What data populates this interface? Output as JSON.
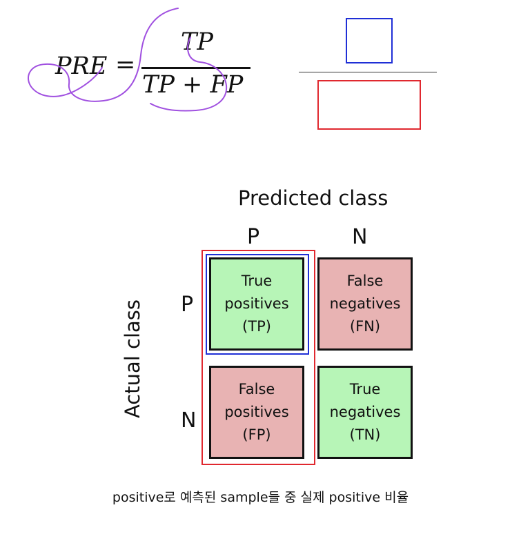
{
  "formula": {
    "lhs": "PRE",
    "equals": "=",
    "numerator": "TP",
    "denominator": "TP + FP"
  },
  "ratio_illustration": {
    "numerator_box_color": "#1f2fd6",
    "denominator_box_color": "#e0282f"
  },
  "matrix": {
    "predicted_label": "Predicted class",
    "actual_label": "Actual class",
    "col_labels": [
      "P",
      "N"
    ],
    "row_labels": [
      "P",
      "N"
    ],
    "cells": {
      "tp": [
        "True",
        "positives",
        "(TP)"
      ],
      "fn": [
        "False",
        "negatives",
        "(FN)"
      ],
      "fp": [
        "False",
        "positives",
        "(FP)"
      ],
      "tn": [
        "True",
        "negatives",
        "(TN)"
      ]
    },
    "colors": {
      "true_cell": "#b7f5b7",
      "false_cell": "#e8b3b3",
      "tp_highlight": "#1f2fd6",
      "predicted_positive_highlight": "#e0282f",
      "annotation_pen": "#a050e0"
    }
  },
  "caption": "positive로 예측된 sample들 중 실제 positive 비율"
}
